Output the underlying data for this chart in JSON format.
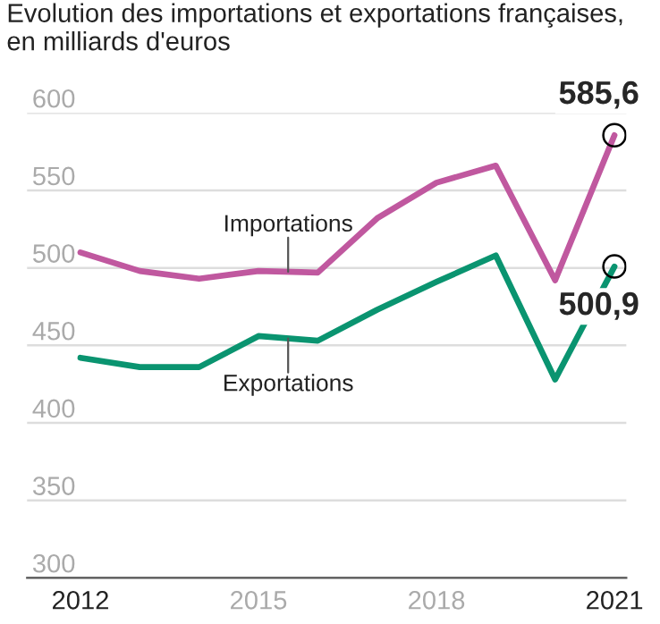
{
  "chart_data": {
    "type": "line",
    "title": "Evolution des importations et exportations françaises, en milliards d'euros",
    "x": [
      2012,
      2013,
      2014,
      2015,
      2016,
      2017,
      2018,
      2019,
      2020,
      2021
    ],
    "series": [
      {
        "name": "Importations",
        "color": "#c0589f",
        "values": [
          510,
          498,
          493,
          498,
          497,
          532,
          555,
          566,
          492,
          585.6
        ],
        "value_labels": [
          null,
          null,
          null,
          null,
          null,
          null,
          null,
          null,
          null,
          "585,6"
        ]
      },
      {
        "name": "Exportations",
        "color": "#0a9470",
        "values": [
          442,
          436,
          436,
          456,
          453,
          473,
          491,
          508,
          428,
          500.9
        ],
        "value_labels": [
          null,
          null,
          null,
          null,
          null,
          null,
          null,
          null,
          null,
          "500,9"
        ]
      }
    ],
    "xlim": [
      2011.1,
      2021.2
    ],
    "xticks": [
      2012,
      2015,
      2018,
      2021
    ],
    "ylim": [
      300,
      600
    ],
    "yticks": [
      300,
      350,
      400,
      450,
      500,
      550,
      600
    ],
    "grid": "y",
    "marker": "none",
    "line_style": "solid",
    "legend": false
  }
}
